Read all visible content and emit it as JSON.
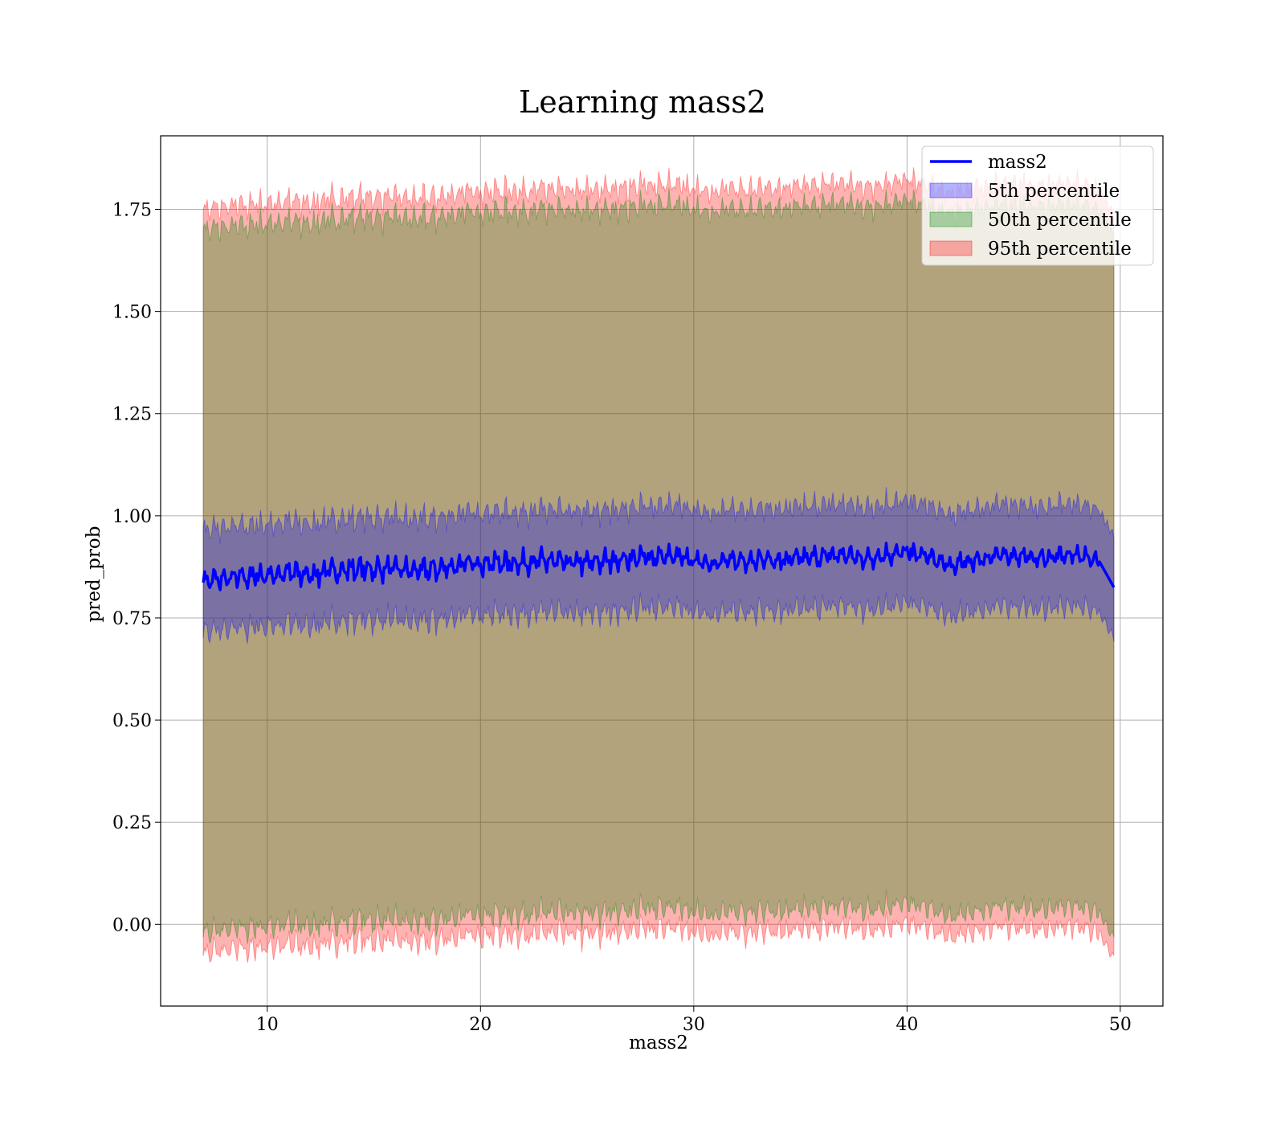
{
  "chart_data": {
    "type": "line",
    "title": "Learning mass2",
    "xlabel": "mass2",
    "ylabel": "pred_prob",
    "xlim": [
      5,
      52
    ],
    "ylim": [
      -0.2,
      1.93
    ],
    "x_ticks": [
      10,
      20,
      30,
      40,
      50
    ],
    "x_tick_labels": [
      "10",
      "20",
      "30",
      "40",
      "50"
    ],
    "y_ticks": [
      0.0,
      0.25,
      0.5,
      0.75,
      1.0,
      1.25,
      1.5,
      1.75
    ],
    "y_tick_labels": [
      "0.00",
      "0.25",
      "0.50",
      "0.75",
      "1.00",
      "1.25",
      "1.50",
      "1.75"
    ],
    "grid": true,
    "legend_position": "top-right",
    "x_range": [
      7.0,
      49.7
    ],
    "series": [
      {
        "name": "mass2",
        "kind": "line",
        "color": "#0000ff",
        "x": [
          7,
          8,
          9,
          10,
          11,
          12,
          13,
          14,
          15,
          16,
          17,
          18,
          19,
          20,
          21,
          22,
          23,
          24,
          25,
          26,
          27,
          28,
          29,
          30,
          31,
          32,
          33,
          34,
          35,
          36,
          37,
          38,
          39,
          40,
          41,
          42,
          43,
          44,
          45,
          46,
          47,
          48,
          49,
          49.7
        ],
        "y": [
          0.84,
          0.845,
          0.85,
          0.855,
          0.86,
          0.855,
          0.865,
          0.87,
          0.87,
          0.87,
          0.865,
          0.87,
          0.88,
          0.885,
          0.885,
          0.885,
          0.89,
          0.885,
          0.885,
          0.89,
          0.895,
          0.9,
          0.9,
          0.89,
          0.885,
          0.89,
          0.895,
          0.89,
          0.895,
          0.9,
          0.905,
          0.895,
          0.905,
          0.91,
          0.9,
          0.875,
          0.89,
          0.9,
          0.905,
          0.895,
          0.9,
          0.905,
          0.89,
          0.825
        ]
      },
      {
        "name": "5th percentile",
        "kind": "band",
        "color": "#0000ff",
        "lower_offset": -0.125,
        "upper_offset": 0.125
      },
      {
        "name": "50th percentile",
        "kind": "band",
        "color": "#008000",
        "lower_offset": -0.86,
        "upper_offset": 0.86
      },
      {
        "name": "95th percentile",
        "kind": "band",
        "color": "#ff0000",
        "lower_offset": -0.91,
        "upper_offset": 0.91
      }
    ]
  }
}
